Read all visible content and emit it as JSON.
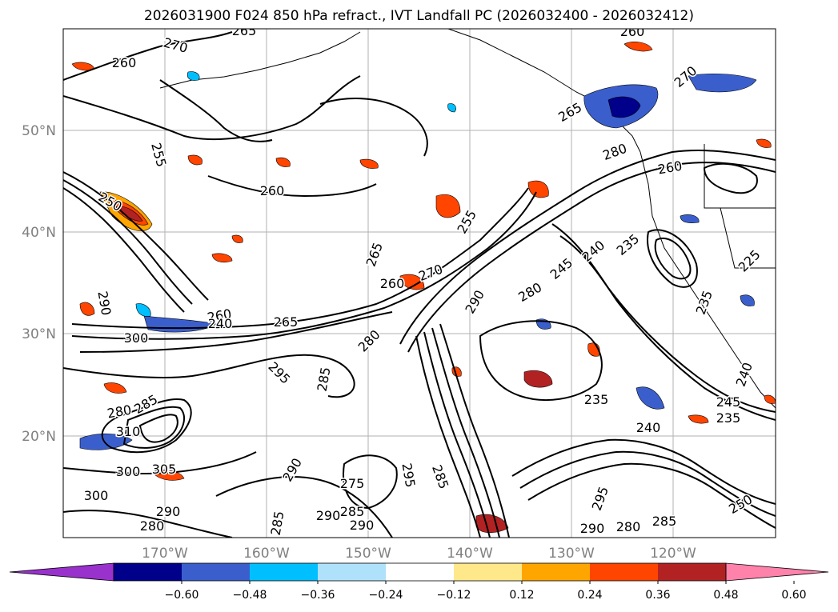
{
  "title": "2026031900 F024 850 hPa refract., IVT Landfall PC (2026032400 - 2026032412)",
  "lat_labels": [
    "50°N",
    "40°N",
    "30°N",
    "20°N"
  ],
  "lon_labels": [
    "170°W",
    "160°W",
    "150°W",
    "140°W",
    "130°W",
    "120°W"
  ],
  "contour_labels": [
    "265",
    "270",
    "260",
    "255",
    "260",
    "250",
    "265",
    "260",
    "270",
    "265",
    "260",
    "280",
    "260",
    "270",
    "235",
    "240",
    "245",
    "280",
    "255",
    "265",
    "280",
    "260",
    "240",
    "290",
    "300",
    "295",
    "285",
    "280",
    "285",
    "310",
    "300",
    "305",
    "290",
    "300",
    "290",
    "280",
    "285",
    "290",
    "285",
    "275",
    "290",
    "295",
    "285",
    "290",
    "235",
    "240",
    "295",
    "290",
    "280",
    "285",
    "250",
    "245",
    "235",
    "240",
    "235",
    "225"
  ],
  "colorbar": {
    "ticks": [
      "−0.60",
      "−0.48",
      "−0.36",
      "−0.24",
      "−0.12",
      "0.12",
      "0.24",
      "0.36",
      "0.48",
      "0.60"
    ],
    "colors": [
      "#9932cc",
      "#00008b",
      "#3a5fcd",
      "#00bfff",
      "#afe1fa",
      "#ffffff",
      "#ffe88a",
      "#ffa500",
      "#ff4500",
      "#b22222",
      "#ff82ab"
    ]
  }
}
